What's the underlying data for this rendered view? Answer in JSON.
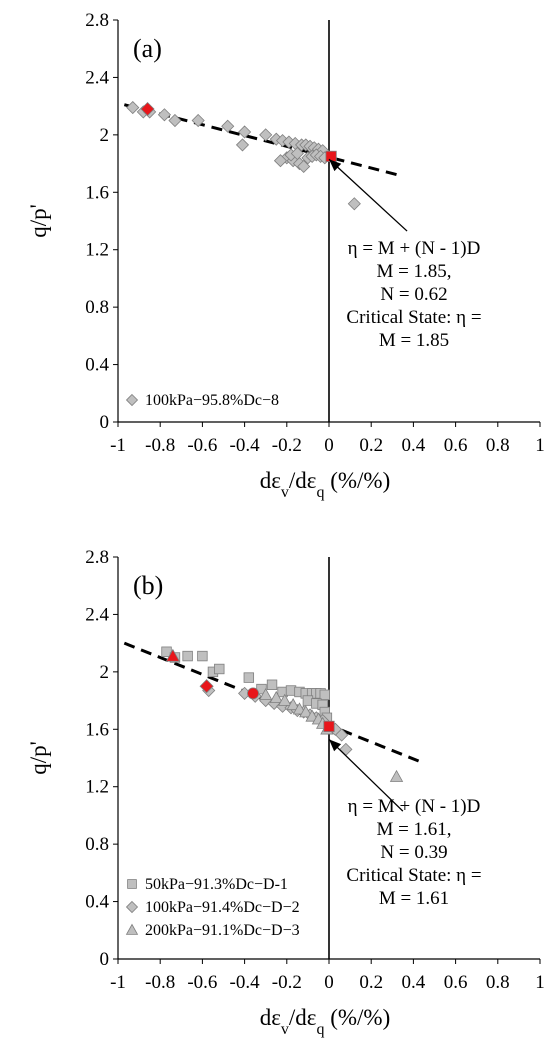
{
  "chart_data": [
    {
      "type": "scatter",
      "panel_label": "(a)",
      "ylabel": "q/p'",
      "xlabel_parts": [
        "dε",
        "v",
        "/dε",
        "q",
        " (%/%)"
      ],
      "xlim": [
        -1,
        1
      ],
      "ylim": [
        0,
        2.8
      ],
      "xticks": [
        -1,
        -0.8,
        -0.6,
        -0.4,
        -0.2,
        0,
        0.2,
        0.4,
        0.6,
        0.8,
        1
      ],
      "xtick_labels": [
        "-1",
        "-0.8",
        "-0.6",
        "-0.4",
        "-0.2",
        "0",
        "0.2",
        "0.4",
        "0.6",
        "0.8",
        "1"
      ],
      "yticks": [
        0,
        0.4,
        0.8,
        1.2,
        1.6,
        2.0,
        2.4,
        2.8
      ],
      "ytick_labels": [
        "0",
        "0.4",
        "0.8",
        "1.2",
        "1.6",
        "2",
        "2.4",
        "2.8"
      ],
      "grid": false,
      "legend_position": "bottom-left",
      "series": [
        {
          "name": "100kPa−95.8%Dc−8",
          "marker": "diamond",
          "color": "#bfbfbf",
          "points": [
            [
              -0.93,
              2.19
            ],
            [
              -0.88,
              2.16
            ],
            [
              -0.85,
              2.16
            ],
            [
              -0.78,
              2.14
            ],
            [
              -0.73,
              2.1
            ],
            [
              -0.62,
              2.1
            ],
            [
              -0.48,
              2.06
            ],
            [
              -0.4,
              2.02
            ],
            [
              -0.41,
              1.93
            ],
            [
              -0.3,
              2.0
            ],
            [
              -0.25,
              1.97
            ],
            [
              -0.22,
              1.96
            ],
            [
              -0.19,
              1.95
            ],
            [
              -0.16,
              1.94
            ],
            [
              -0.13,
              1.93
            ],
            [
              -0.11,
              1.93
            ],
            [
              -0.09,
              1.92
            ],
            [
              -0.07,
              1.91
            ],
            [
              -0.05,
              1.9
            ],
            [
              -0.03,
              1.89
            ],
            [
              -0.2,
              1.84
            ],
            [
              -0.17,
              1.82
            ],
            [
              -0.23,
              1.82
            ],
            [
              -0.14,
              1.8
            ],
            [
              -0.12,
              1.78
            ],
            [
              -0.18,
              1.86
            ],
            [
              -0.15,
              1.87
            ],
            [
              -0.1,
              1.84
            ],
            [
              -0.08,
              1.85
            ],
            [
              -0.06,
              1.86
            ],
            [
              -0.04,
              1.85
            ],
            [
              -0.02,
              1.84
            ],
            [
              0.12,
              1.52
            ]
          ]
        }
      ],
      "highlight_points": [
        {
          "shape": "diamond",
          "color": "#e8161b",
          "x": -0.86,
          "y": 2.18
        },
        {
          "shape": "square",
          "color": "#e8161b",
          "x": 0.01,
          "y": 1.85
        }
      ],
      "trend_line": {
        "x": [
          -0.97,
          0.33
        ],
        "y": [
          2.21,
          1.72
        ],
        "style": "dashed"
      },
      "annotation": {
        "lines": [
          "η = M + (N - 1)D",
          "M = 1.85,",
          "N = 0.62",
          "Critical State: η =",
          "M = 1.85"
        ],
        "arrow_tip": [
          0.0,
          1.83
        ],
        "arrow_from": [
          0.37,
          1.33
        ]
      }
    },
    {
      "type": "scatter",
      "panel_label": "(b)",
      "ylabel": "q/p'",
      "xlabel_parts": [
        "dε",
        "v",
        "/dε",
        "q",
        " (%/%)"
      ],
      "xlim": [
        -1,
        1
      ],
      "ylim": [
        0,
        2.8
      ],
      "xticks": [
        -1,
        -0.8,
        -0.6,
        -0.4,
        -0.2,
        0,
        0.2,
        0.4,
        0.6,
        0.8,
        1
      ],
      "xtick_labels": [
        "-1",
        "-0.8",
        "-0.6",
        "-0.4",
        "-0.2",
        "0",
        "0.2",
        "0.4",
        "0.6",
        "0.8",
        "1"
      ],
      "yticks": [
        0,
        0.4,
        0.8,
        1.2,
        1.6,
        2.0,
        2.4,
        2.8
      ],
      "ytick_labels": [
        "0",
        "0.4",
        "0.8",
        "1.2",
        "1.6",
        "2",
        "2.4",
        "2.8"
      ],
      "grid": false,
      "legend_position": "bottom-left",
      "series": [
        {
          "name": "50kPa−91.3%Dc−D-1",
          "marker": "square",
          "color": "#bfbfbf",
          "points": [
            [
              -0.77,
              2.14
            ],
            [
              -0.73,
              2.1
            ],
            [
              -0.67,
              2.11
            ],
            [
              -0.6,
              2.11
            ],
            [
              -0.55,
              2.0
            ],
            [
              -0.52,
              2.02
            ],
            [
              -0.38,
              1.96
            ],
            [
              -0.32,
              1.88
            ],
            [
              -0.27,
              1.91
            ],
            [
              -0.22,
              1.86
            ],
            [
              -0.18,
              1.87
            ],
            [
              -0.14,
              1.86
            ],
            [
              -0.11,
              1.85
            ],
            [
              -0.08,
              1.85
            ],
            [
              -0.06,
              1.85
            ],
            [
              -0.04,
              1.85
            ],
            [
              -0.02,
              1.84
            ],
            [
              -0.1,
              1.8
            ],
            [
              -0.06,
              1.78
            ],
            [
              -0.03,
              1.77
            ],
            [
              -0.02,
              1.72
            ],
            [
              -0.01,
              1.68
            ]
          ]
        },
        {
          "name": "100kPa−91.4%Dc−D−2",
          "marker": "diamond",
          "color": "#bfbfbf",
          "points": [
            [
              -0.57,
              1.87
            ],
            [
              -0.4,
              1.85
            ],
            [
              -0.35,
              1.83
            ],
            [
              -0.3,
              1.8
            ],
            [
              -0.26,
              1.78
            ],
            [
              -0.22,
              1.76
            ],
            [
              -0.18,
              1.75
            ],
            [
              -0.15,
              1.73
            ],
            [
              -0.12,
              1.72
            ],
            [
              -0.09,
              1.7
            ],
            [
              -0.06,
              1.68
            ],
            [
              -0.03,
              1.66
            ],
            [
              0.03,
              1.6
            ],
            [
              0.06,
              1.56
            ],
            [
              0.08,
              1.46
            ]
          ]
        },
        {
          "name": "200kPa−91.1%Dc−D−3",
          "marker": "triangle",
          "color": "#bfbfbf",
          "points": [
            [
              -0.3,
              1.84
            ],
            [
              -0.25,
              1.82
            ],
            [
              -0.21,
              1.8
            ],
            [
              -0.17,
              1.77
            ],
            [
              -0.14,
              1.74
            ],
            [
              -0.11,
              1.72
            ],
            [
              -0.08,
              1.69
            ],
            [
              -0.05,
              1.67
            ],
            [
              -0.03,
              1.64
            ],
            [
              -0.01,
              1.6
            ],
            [
              0.32,
              1.27
            ]
          ]
        }
      ],
      "highlight_points": [
        {
          "shape": "triangle",
          "color": "#e8161b",
          "x": -0.74,
          "y": 2.11
        },
        {
          "shape": "diamond",
          "color": "#e8161b",
          "x": -0.58,
          "y": 1.9
        },
        {
          "shape": "circle",
          "color": "#e8161b",
          "x": -0.36,
          "y": 1.85
        },
        {
          "shape": "square",
          "color": "#e8161b",
          "x": 0.0,
          "y": 1.62
        }
      ],
      "trend_line": {
        "x": [
          -0.97,
          0.44
        ],
        "y": [
          2.2,
          1.37
        ],
        "style": "dashed"
      },
      "annotation": {
        "lines": [
          "η = M + (N - 1)D",
          "M = 1.61,",
          "N = 0.39",
          "Critical State: η =",
          "M = 1.61"
        ],
        "arrow_tip": [
          0.0,
          1.53
        ],
        "arrow_from": [
          0.35,
          1.03
        ]
      }
    }
  ]
}
